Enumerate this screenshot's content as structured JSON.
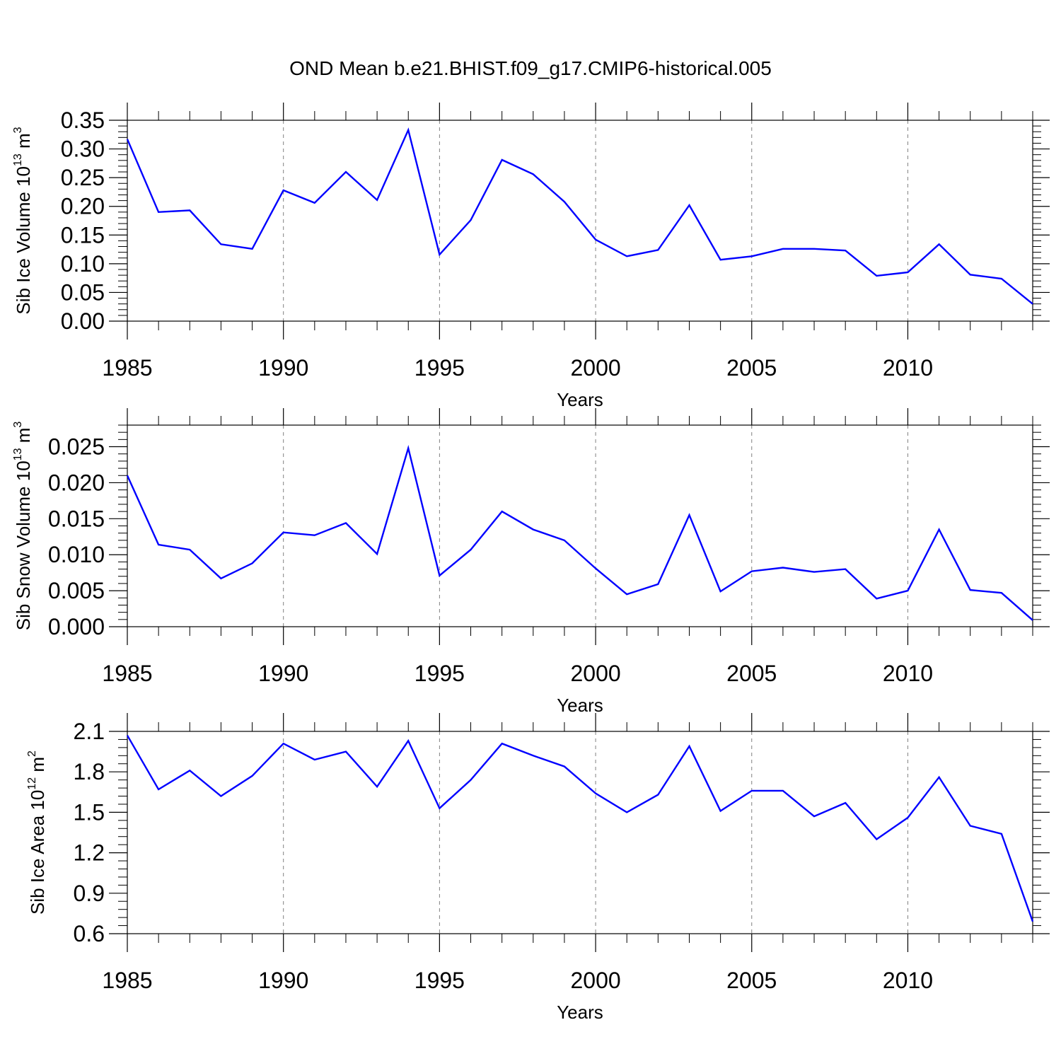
{
  "figure_title": "OND Mean b.e21.BHIST.f09_g17.CMIP6-historical.005",
  "colors": {
    "line": "#0000ff",
    "axes": "#000000",
    "grid": "#808080"
  },
  "chart_data": [
    {
      "type": "line",
      "ylabel": {
        "base": "Sib Ice Volume 10",
        "exponent": "13",
        "unit": " m",
        "unit_exponent": "3"
      },
      "xlabel": "Years",
      "xlim": [
        1985,
        2014
      ],
      "ylim": [
        0,
        0.35
      ],
      "xticks": [
        1985,
        1990,
        1995,
        2000,
        2005,
        2010
      ],
      "xtick_labels": [
        "1985",
        "1990",
        "1995",
        "2000",
        "2005",
        "2010"
      ],
      "yticks": [
        0,
        0.05,
        0.1,
        0.15,
        0.2,
        0.25,
        0.3,
        0.35
      ],
      "ytick_labels": [
        "0.00",
        "0.05",
        "0.10",
        "0.15",
        "0.20",
        "0.25",
        "0.30",
        "0.35"
      ],
      "grid": "vertical dashed at major x ticks",
      "x": [
        1985,
        1986,
        1987,
        1988,
        1989,
        1990,
        1991,
        1992,
        1993,
        1994,
        1995,
        1996,
        1997,
        1998,
        1999,
        2000,
        2001,
        2002,
        2003,
        2004,
        2005,
        2006,
        2007,
        2008,
        2009,
        2010,
        2011,
        2012,
        2013,
        2014
      ],
      "values": [
        0.317,
        0.19,
        0.193,
        0.134,
        0.126,
        0.228,
        0.206,
        0.26,
        0.211,
        0.333,
        0.116,
        0.176,
        0.281,
        0.256,
        0.208,
        0.142,
        0.113,
        0.124,
        0.202,
        0.107,
        0.113,
        0.126,
        0.126,
        0.123,
        0.079,
        0.085,
        0.134,
        0.081,
        0.074,
        0.03
      ]
    },
    {
      "type": "line",
      "ylabel": {
        "base": "Sib Snow Volume 10",
        "exponent": "13",
        "unit": " m",
        "unit_exponent": "3"
      },
      "xlabel": "Years",
      "xlim": [
        1985,
        2014
      ],
      "ylim": [
        0,
        0.028
      ],
      "xticks": [
        1985,
        1990,
        1995,
        2000,
        2005,
        2010
      ],
      "xtick_labels": [
        "1985",
        "1990",
        "1995",
        "2000",
        "2005",
        "2010"
      ],
      "yticks": [
        0,
        0.005,
        0.01,
        0.015,
        0.02,
        0.025
      ],
      "ytick_labels": [
        "0.000",
        "0.005",
        "0.010",
        "0.015",
        "0.020",
        "0.025"
      ],
      "grid": "vertical dashed at major x ticks",
      "x": [
        1985,
        1986,
        1987,
        1988,
        1989,
        1990,
        1991,
        1992,
        1993,
        1994,
        1995,
        1996,
        1997,
        1998,
        1999,
        2000,
        2001,
        2002,
        2003,
        2004,
        2005,
        2006,
        2007,
        2008,
        2009,
        2010,
        2011,
        2012,
        2013,
        2014
      ],
      "values": [
        0.021,
        0.0114,
        0.0107,
        0.0067,
        0.0088,
        0.0131,
        0.0127,
        0.0144,
        0.0101,
        0.0248,
        0.0071,
        0.0107,
        0.016,
        0.0135,
        0.012,
        0.0081,
        0.0045,
        0.0059,
        0.0155,
        0.0049,
        0.0077,
        0.0082,
        0.0076,
        0.008,
        0.0039,
        0.005,
        0.0135,
        0.0051,
        0.0047,
        0.0009
      ]
    },
    {
      "type": "line",
      "ylabel": {
        "base": "Sib Ice Area 10",
        "exponent": "12",
        "unit": " m",
        "unit_exponent": "2"
      },
      "xlabel": "Years",
      "xlim": [
        1985,
        2014
      ],
      "ylim": [
        0.6,
        2.1
      ],
      "xticks": [
        1985,
        1990,
        1995,
        2000,
        2005,
        2010
      ],
      "xtick_labels": [
        "1985",
        "1990",
        "1995",
        "2000",
        "2005",
        "2010"
      ],
      "yticks": [
        0.6,
        0.9,
        1.2,
        1.5,
        1.8,
        2.1
      ],
      "ytick_labels": [
        "0.6",
        "0.9",
        "1.2",
        "1.5",
        "1.8",
        "2.1"
      ],
      "grid": "vertical dashed at major x ticks",
      "x": [
        1985,
        1986,
        1987,
        1988,
        1989,
        1990,
        1991,
        1992,
        1993,
        1994,
        1995,
        1996,
        1997,
        1998,
        1999,
        2000,
        2001,
        2002,
        2003,
        2004,
        2005,
        2006,
        2007,
        2008,
        2009,
        2010,
        2011,
        2012,
        2013,
        2014
      ],
      "values": [
        2.07,
        1.67,
        1.81,
        1.62,
        1.77,
        2.01,
        1.89,
        1.95,
        1.69,
        2.03,
        1.53,
        1.74,
        2.01,
        1.92,
        1.84,
        1.64,
        1.5,
        1.63,
        1.99,
        1.51,
        1.66,
        1.66,
        1.47,
        1.57,
        1.3,
        1.46,
        1.76,
        1.4,
        1.34,
        0.69
      ]
    }
  ]
}
